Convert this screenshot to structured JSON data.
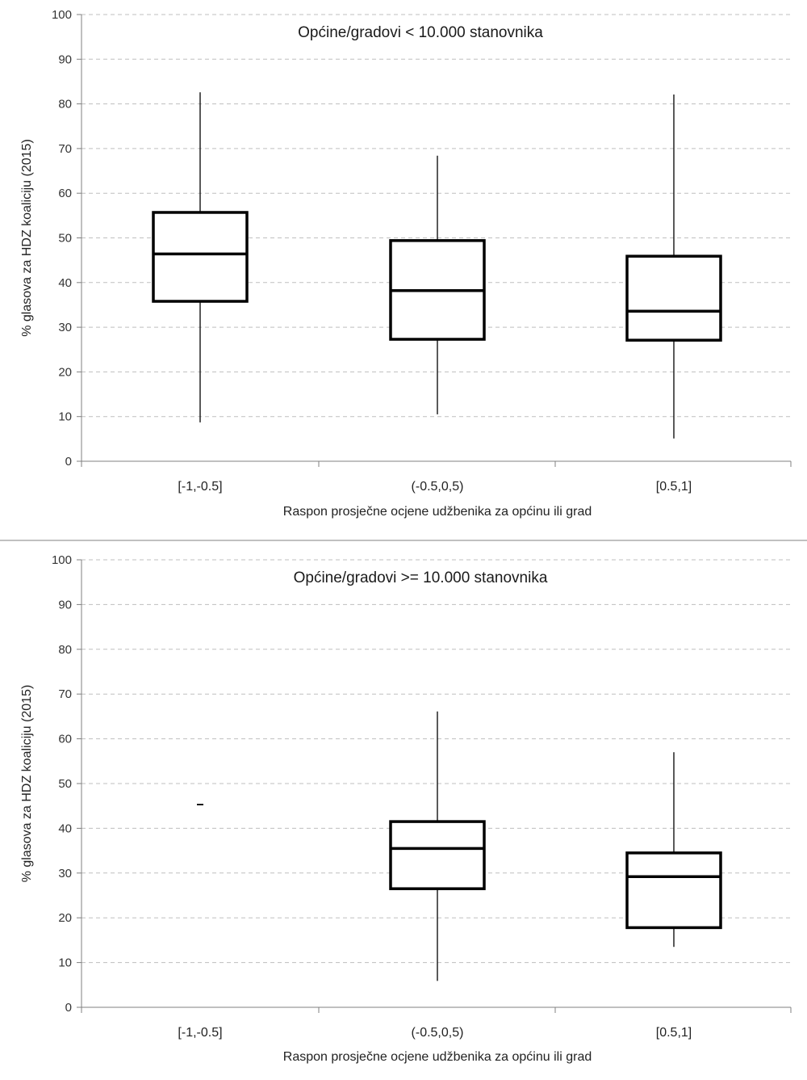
{
  "chart_data": [
    {
      "type": "box",
      "title": "Općine/gradovi < 10.000 stanovnika",
      "xlabel": "Raspon prosječne ocjene udžbenika za općinu ili grad",
      "ylabel": "% glasova za HDZ koaliciju (2015)",
      "ylim": [
        0,
        100
      ],
      "yticks": [
        0,
        10,
        20,
        30,
        40,
        50,
        60,
        70,
        80,
        90,
        100
      ],
      "grid": true,
      "categories": [
        "[-1,-0.5]",
        "(-0.5,0,5)",
        "[0.5,1]"
      ],
      "boxes": [
        {
          "min": 8.7,
          "q1": 35.8,
          "median": 46.4,
          "q3": 55.7,
          "max": 82.6
        },
        {
          "min": 10.5,
          "q1": 27.3,
          "median": 38.2,
          "q3": 49.4,
          "max": 68.4
        },
        {
          "min": 5.1,
          "q1": 27.1,
          "median": 33.6,
          "q3": 45.9,
          "max": 82.1
        }
      ]
    },
    {
      "type": "box",
      "title": "Općine/gradovi >= 10.000 stanovnika",
      "xlabel": "Raspon prosječne ocjene udžbenika za općinu ili grad",
      "ylabel": "% glasova za HDZ koaliciju (2015)",
      "ylim": [
        0,
        100
      ],
      "yticks": [
        0,
        10,
        20,
        30,
        40,
        50,
        60,
        70,
        80,
        90,
        100
      ],
      "grid": true,
      "categories": [
        "[-1,-0.5]",
        "(-0.5,0,5)",
        "[0.5,1]"
      ],
      "boxes": [
        {
          "min": 45.3,
          "q1": 45.3,
          "median": 45.3,
          "q3": 45.3,
          "max": 45.3
        },
        {
          "min": 5.9,
          "q1": 26.5,
          "median": 35.5,
          "q3": 41.5,
          "max": 66.1
        },
        {
          "min": 13.5,
          "q1": 17.8,
          "median": 29.2,
          "q3": 34.5,
          "max": 57.0
        }
      ]
    }
  ]
}
